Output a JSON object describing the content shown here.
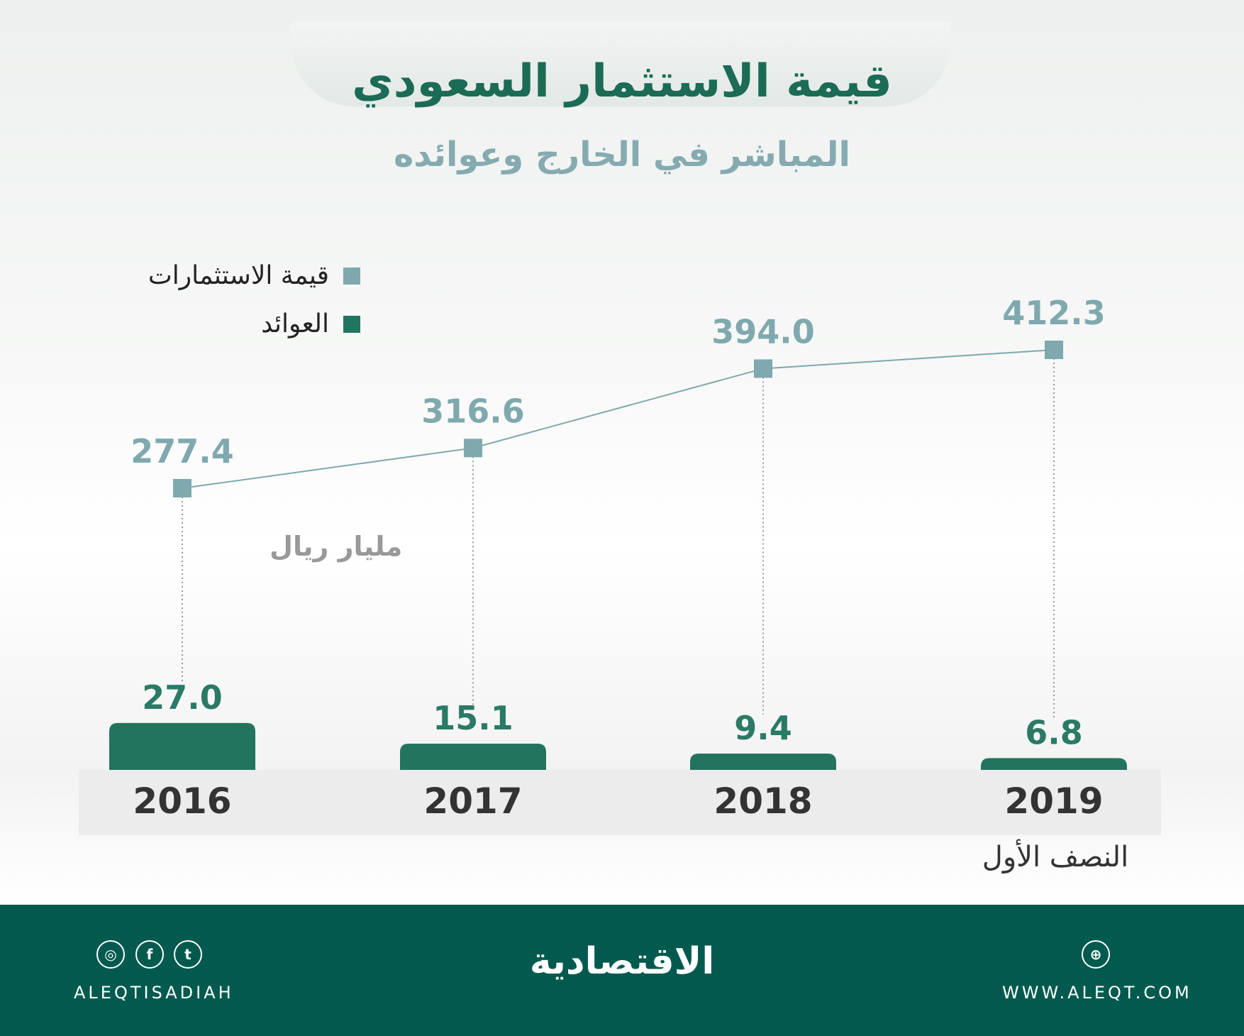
{
  "title": "قيمة الاستثمار السعودي",
  "subtitle": "المباشر في الخارج وعوائده",
  "legend": [
    {
      "label": "قيمة الاستثمارات",
      "color": "#7fa9ae"
    },
    {
      "label": "العوائد",
      "color": "#23745f"
    }
  ],
  "unit_label": "مليار ريال",
  "period_note": "النصف الأول",
  "chart_data": {
    "type": "line+bar",
    "categories": [
      "2016",
      "2017",
      "2018",
      "2019"
    ],
    "series": [
      {
        "name": "قيمة الاستثمارات",
        "type": "line",
        "values": [
          277.4,
          316.6,
          394.0,
          412.3
        ],
        "labels": [
          "277.4",
          "316.6",
          "394.0",
          "412.3"
        ],
        "color": "#7fa9ae"
      },
      {
        "name": "العوائد",
        "type": "bar",
        "values": [
          27.0,
          15.1,
          9.4,
          6.8
        ],
        "labels": [
          "27.0",
          "15.1",
          "9.4",
          "6.8"
        ],
        "color": "#23745f"
      }
    ],
    "unit": "مليار ريال",
    "grid": false,
    "legend_position": "top-left"
  },
  "footer": {
    "social_handle": "ALEQTISADIAH",
    "brand": "الاقتصادية",
    "website": "WWW.ALEQT.COM",
    "background": "#025a4f"
  }
}
